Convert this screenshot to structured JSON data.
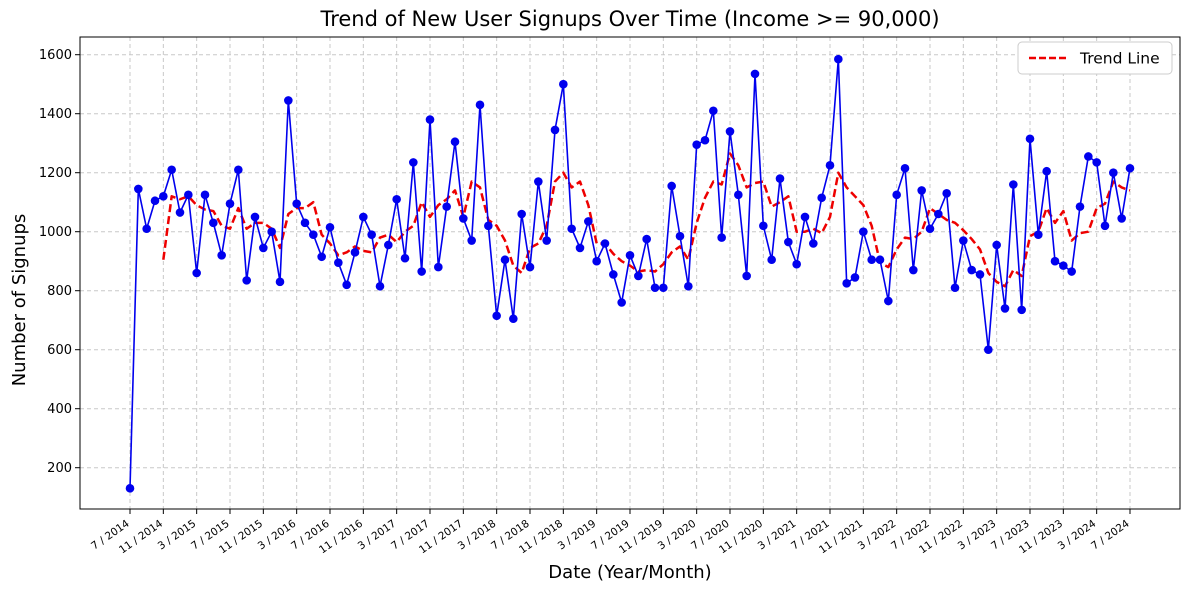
{
  "chart_data": {
    "type": "line",
    "title": "Trend of New User Signups Over Time (Income >= 90,000)",
    "xlabel": "Date (Year/Month)",
    "ylabel": "Number of Signups",
    "ylim": [
      60,
      1660
    ],
    "yticks": [
      200,
      400,
      600,
      800,
      1000,
      1200,
      1400,
      1600
    ],
    "x_start": "2014-07",
    "xticks": [
      "7 / 2014",
      "11 / 2014",
      "3 / 2015",
      "7 / 2015",
      "11 / 2015",
      "3 / 2016",
      "7 / 2016",
      "11 / 2016",
      "3 / 2017",
      "7 / 2017",
      "11 / 2017",
      "3 / 2018",
      "7 / 2018",
      "11 / 2018",
      "3 / 2019",
      "7 / 2019",
      "11 / 2019",
      "3 / 2020",
      "7 / 2020",
      "11 / 2020",
      "3 / 2021",
      "7 / 2021",
      "11 / 2021",
      "3 / 2022",
      "7 / 2022",
      "11 / 2022",
      "3 / 2023",
      "7 / 2023",
      "11 / 2023",
      "3 / 2024",
      "7 / 2024"
    ],
    "grid": true,
    "legend_position": "top-right",
    "series": [
      {
        "name": "",
        "color": "#0000ee",
        "style": "solid-with-markers",
        "values": [
          130,
          1145,
          1010,
          1105,
          1120,
          1210,
          1065,
          1125,
          860,
          1125,
          1030,
          920,
          1095,
          1210,
          835,
          1050,
          945,
          1000,
          830,
          1445,
          1095,
          1030,
          990,
          915,
          1015,
          895,
          820,
          930,
          1050,
          990,
          815,
          955,
          1110,
          910,
          1235,
          865,
          1380,
          880,
          1085,
          1305,
          1045,
          970,
          1430,
          1020,
          715,
          905,
          705,
          1060,
          880,
          1170,
          970,
          1345,
          1500,
          1010,
          945,
          1035,
          900,
          960,
          855,
          760,
          920,
          850,
          975,
          810,
          810,
          1155,
          985,
          815,
          1295,
          1310,
          1410,
          980,
          1340,
          1125,
          850,
          1535,
          1020,
          905,
          1180,
          965,
          890,
          1050,
          960,
          1115,
          1225,
          1585,
          825,
          845,
          1000,
          905,
          905,
          765,
          1125,
          1215,
          870,
          1140,
          1010,
          1060,
          1130,
          810,
          970,
          870,
          855,
          600,
          955,
          740,
          1160,
          735,
          1315,
          990,
          1205,
          900,
          885,
          865,
          1085,
          1255,
          1235,
          1020,
          1200,
          1045,
          1215
        ]
      },
      {
        "name": "Trend Line",
        "color": "#ee0000",
        "style": "dashed",
        "start_index": 4,
        "values": [
          905,
          1120,
          1110,
          1120,
          1090,
          1075,
          1070,
          1020,
          1010,
          1080,
          1010,
          1030,
          1030,
          1010,
          945,
          1060,
          1080,
          1080,
          1100,
          990,
          960,
          920,
          930,
          950,
          935,
          930,
          980,
          990,
          965,
          1000,
          1020,
          1100,
          1050,
          1090,
          1110,
          1140,
          1050,
          1170,
          1150,
          1040,
          1020,
          970,
          885,
          860,
          945,
          960,
          1020,
          1170,
          1200,
          1150,
          1170,
          1090,
          960,
          960,
          925,
          900,
          885,
          865,
          870,
          865,
          890,
          930,
          950,
          905,
          1030,
          1115,
          1170,
          1160,
          1265,
          1225,
          1150,
          1165,
          1170,
          1085,
          1100,
          1120,
          1000,
          1000,
          1010,
          995,
          1050,
          1200,
          1150,
          1120,
          1090,
          1020,
          895,
          880,
          940,
          980,
          975,
          1000,
          1080,
          1060,
          1040,
          1030,
          1005,
          975,
          940,
          860,
          830,
          815,
          870,
          850,
          985,
          1000,
          1080,
          1030,
          1070,
          970,
          995,
          1000,
          1080,
          1095,
          1170,
          1150,
          1140
        ]
      }
    ]
  }
}
